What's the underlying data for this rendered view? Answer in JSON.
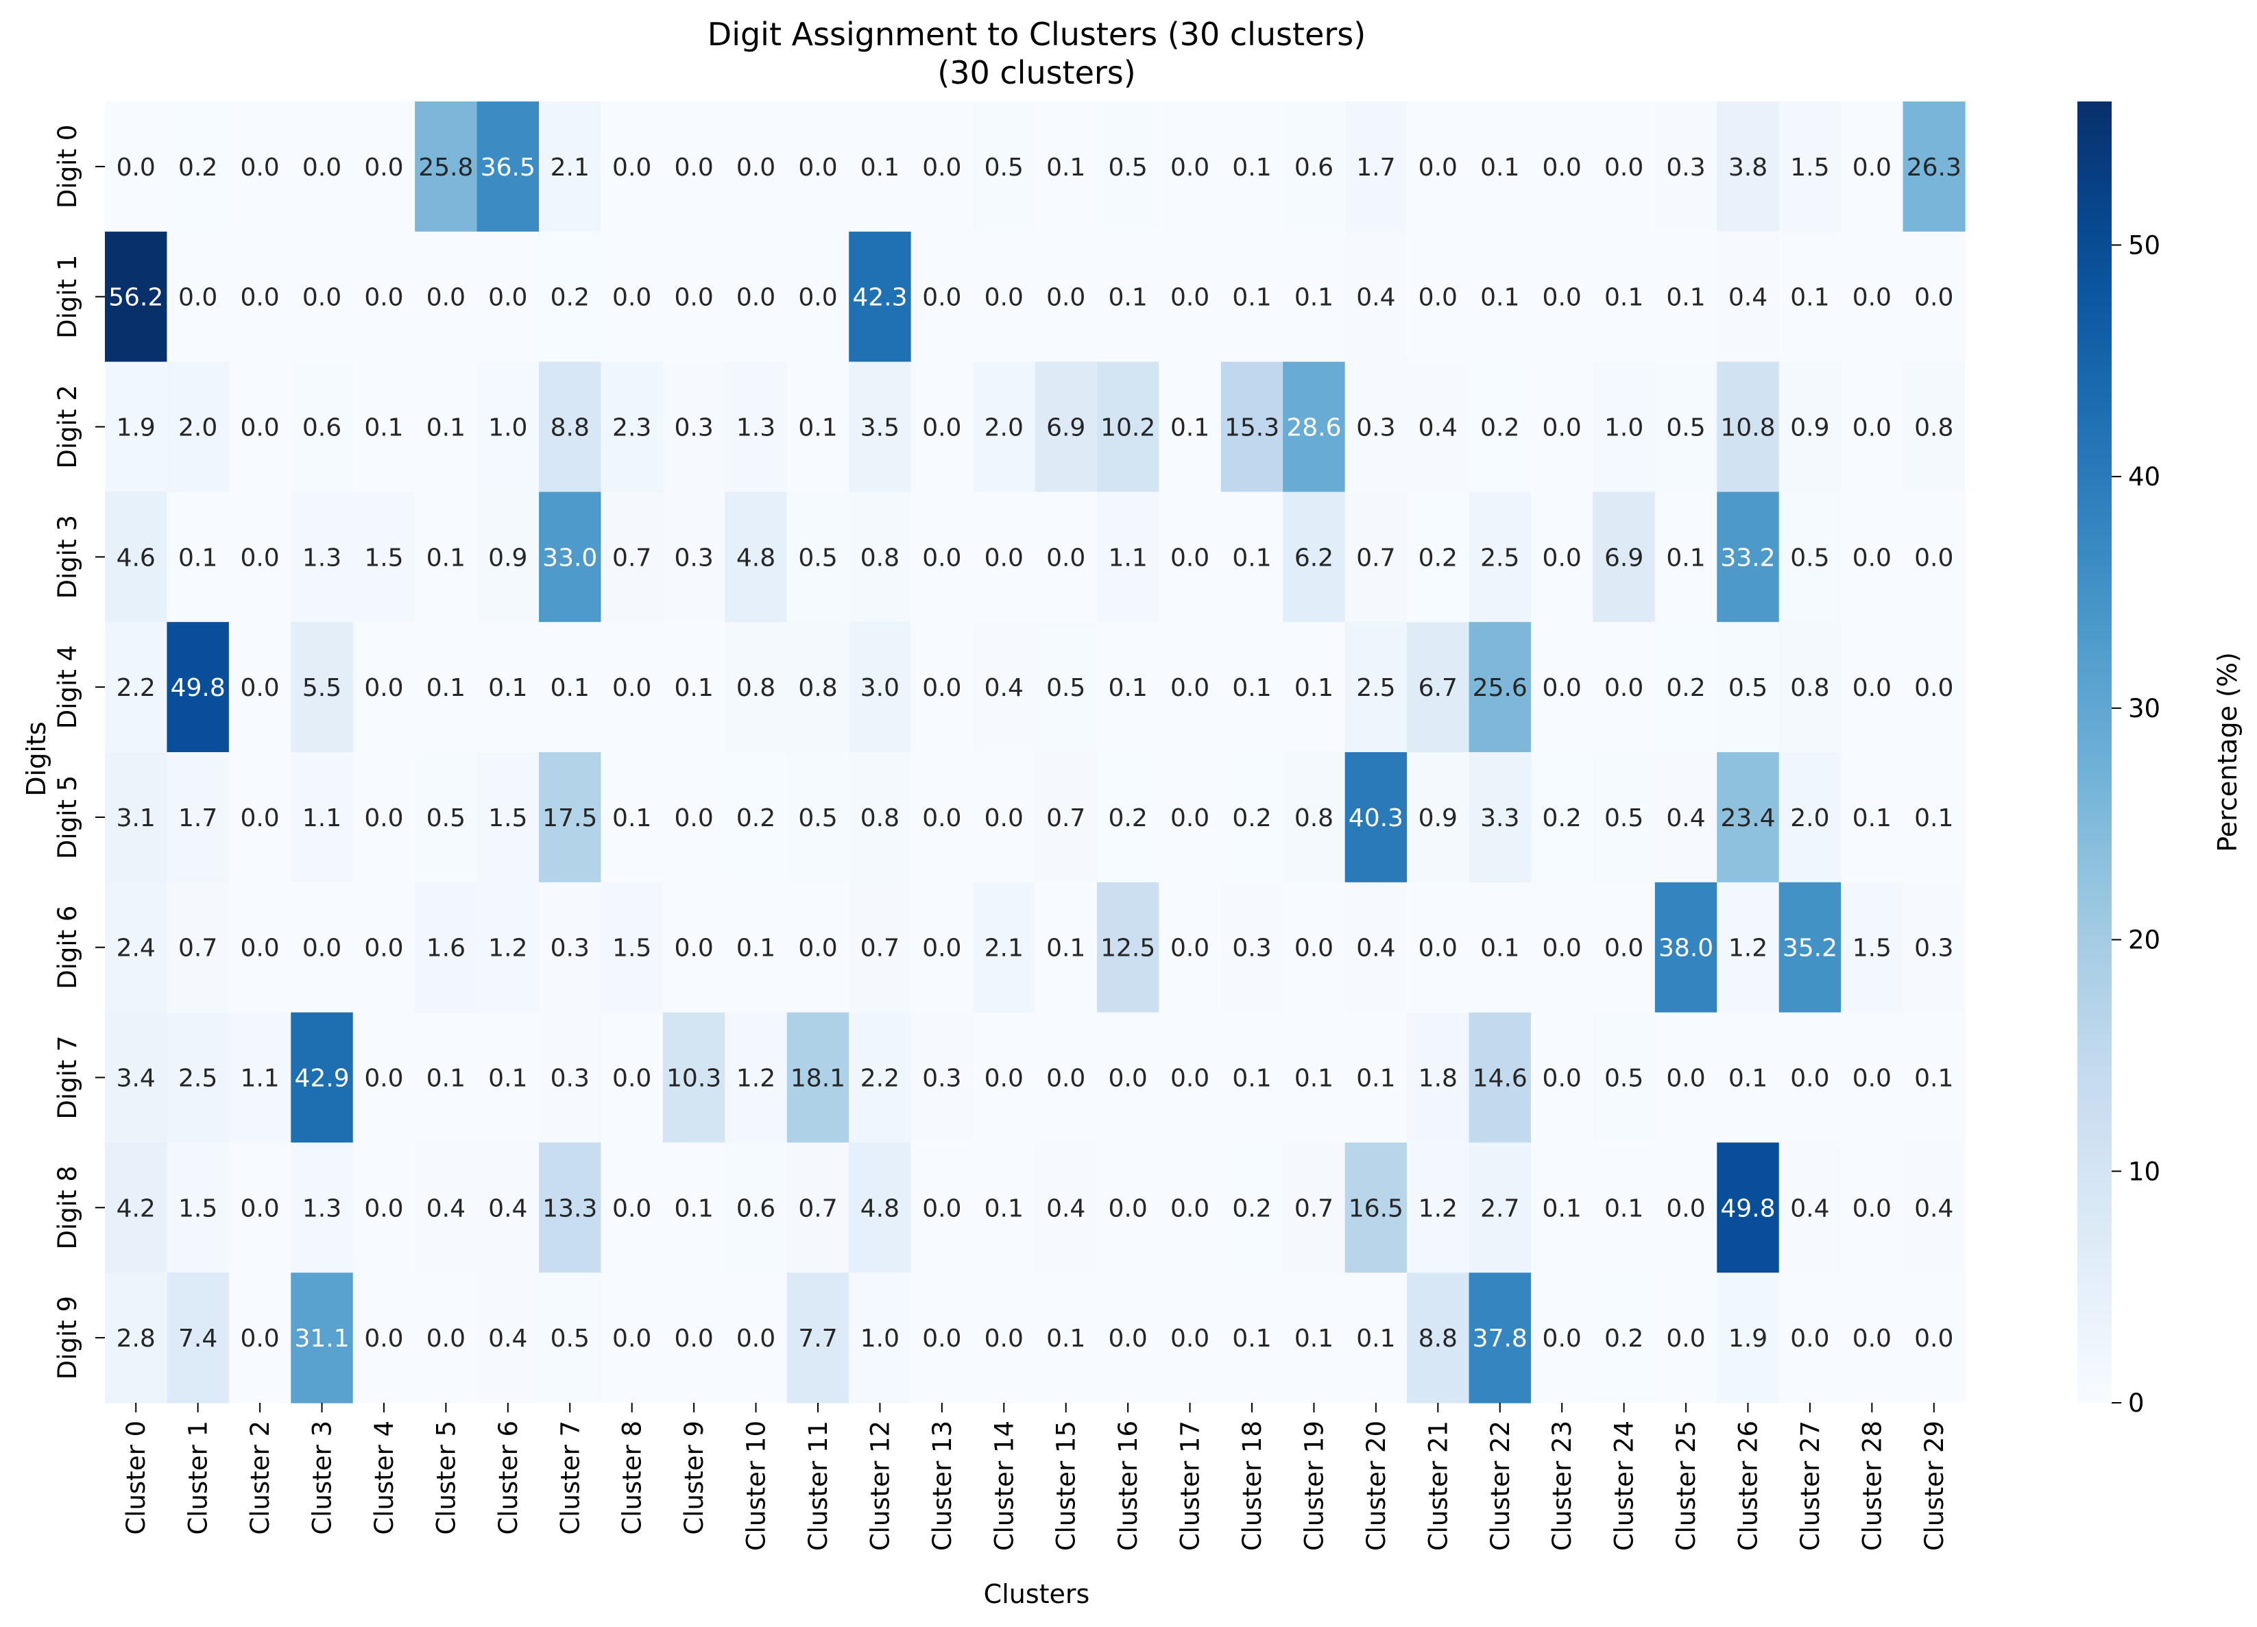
{
  "chart_data": {
    "type": "heatmap",
    "title": "Digit Assignment to Clusters (30 clusters)",
    "subtitle": "(30 clusters)",
    "xlabel": "Clusters",
    "ylabel": "Digits",
    "colorbar_label": "Percentage (%)",
    "colormap": "Blues",
    "vmin": 0,
    "vmax": 56.2,
    "colorbar_ticks": [
      0,
      10,
      20,
      30,
      40,
      50
    ],
    "grid": false,
    "x_categories": [
      "Cluster 0",
      "Cluster 1",
      "Cluster 2",
      "Cluster 3",
      "Cluster 4",
      "Cluster 5",
      "Cluster 6",
      "Cluster 7",
      "Cluster 8",
      "Cluster 9",
      "Cluster 10",
      "Cluster 11",
      "Cluster 12",
      "Cluster 13",
      "Cluster 14",
      "Cluster 15",
      "Cluster 16",
      "Cluster 17",
      "Cluster 18",
      "Cluster 19",
      "Cluster 20",
      "Cluster 21",
      "Cluster 22",
      "Cluster 23",
      "Cluster 24",
      "Cluster 25",
      "Cluster 26",
      "Cluster 27",
      "Cluster 28",
      "Cluster 29"
    ],
    "y_categories": [
      "Digit 0",
      "Digit 1",
      "Digit 2",
      "Digit 3",
      "Digit 4",
      "Digit 5",
      "Digit 6",
      "Digit 7",
      "Digit 8",
      "Digit 9"
    ],
    "values": [
      [
        0.0,
        0.2,
        0.0,
        0.0,
        0.0,
        25.8,
        36.5,
        2.1,
        0.0,
        0.0,
        0.0,
        0.0,
        0.1,
        0.0,
        0.5,
        0.1,
        0.5,
        0.0,
        0.1,
        0.6,
        1.7,
        0.0,
        0.1,
        0.0,
        0.0,
        0.3,
        3.8,
        1.5,
        0.0,
        26.3
      ],
      [
        56.2,
        0.0,
        0.0,
        0.0,
        0.0,
        0.0,
        0.0,
        0.2,
        0.0,
        0.0,
        0.0,
        0.0,
        42.3,
        0.0,
        0.0,
        0.0,
        0.1,
        0.0,
        0.1,
        0.1,
        0.4,
        0.0,
        0.1,
        0.0,
        0.1,
        0.1,
        0.4,
        0.1,
        0.0,
        0.0
      ],
      [
        1.9,
        2.0,
        0.0,
        0.6,
        0.1,
        0.1,
        1.0,
        8.8,
        2.3,
        0.3,
        1.3,
        0.1,
        3.5,
        0.0,
        2.0,
        6.9,
        10.2,
        0.1,
        15.3,
        28.6,
        0.3,
        0.4,
        0.2,
        0.0,
        1.0,
        0.5,
        10.8,
        0.9,
        0.0,
        0.8
      ],
      [
        4.6,
        0.1,
        0.0,
        1.3,
        1.5,
        0.1,
        0.9,
        33.0,
        0.7,
        0.3,
        4.8,
        0.5,
        0.8,
        0.0,
        0.0,
        0.0,
        1.1,
        0.0,
        0.1,
        6.2,
        0.7,
        0.2,
        2.5,
        0.0,
        6.9,
        0.1,
        33.2,
        0.5,
        0.0,
        0.0
      ],
      [
        2.2,
        49.8,
        0.0,
        5.5,
        0.0,
        0.1,
        0.1,
        0.1,
        0.0,
        0.1,
        0.8,
        0.8,
        3.0,
        0.0,
        0.4,
        0.5,
        0.1,
        0.0,
        0.1,
        0.1,
        2.5,
        6.7,
        25.6,
        0.0,
        0.0,
        0.2,
        0.5,
        0.8,
        0.0,
        0.0
      ],
      [
        3.1,
        1.7,
        0.0,
        1.1,
        0.0,
        0.5,
        1.5,
        17.5,
        0.1,
        0.0,
        0.2,
        0.5,
        0.8,
        0.0,
        0.0,
        0.7,
        0.2,
        0.0,
        0.2,
        0.8,
        40.3,
        0.9,
        3.3,
        0.2,
        0.5,
        0.4,
        23.4,
        2.0,
        0.1,
        0.1
      ],
      [
        2.4,
        0.7,
        0.0,
        0.0,
        0.0,
        1.6,
        1.2,
        0.3,
        1.5,
        0.0,
        0.1,
        0.0,
        0.7,
        0.0,
        2.1,
        0.1,
        12.5,
        0.0,
        0.3,
        0.0,
        0.4,
        0.0,
        0.1,
        0.0,
        0.0,
        38.0,
        1.2,
        35.2,
        1.5,
        0.3
      ],
      [
        3.4,
        2.5,
        1.1,
        42.9,
        0.0,
        0.1,
        0.1,
        0.3,
        0.0,
        10.3,
        1.2,
        18.1,
        2.2,
        0.3,
        0.0,
        0.0,
        0.0,
        0.0,
        0.1,
        0.1,
        0.1,
        1.8,
        14.6,
        0.0,
        0.5,
        0.0,
        0.1,
        0.0,
        0.0,
        0.1
      ],
      [
        4.2,
        1.5,
        0.0,
        1.3,
        0.0,
        0.4,
        0.4,
        13.3,
        0.0,
        0.1,
        0.6,
        0.7,
        4.8,
        0.0,
        0.1,
        0.4,
        0.0,
        0.0,
        0.2,
        0.7,
        16.5,
        1.2,
        2.7,
        0.1,
        0.1,
        0.0,
        49.8,
        0.4,
        0.0,
        0.4
      ],
      [
        2.8,
        7.4,
        0.0,
        31.1,
        0.0,
        0.0,
        0.4,
        0.5,
        0.0,
        0.0,
        0.0,
        7.7,
        1.0,
        0.0,
        0.0,
        0.1,
        0.0,
        0.0,
        0.1,
        0.1,
        0.1,
        8.8,
        37.8,
        0.0,
        0.2,
        0.0,
        1.9,
        0.0,
        0.0,
        0.0
      ]
    ]
  }
}
